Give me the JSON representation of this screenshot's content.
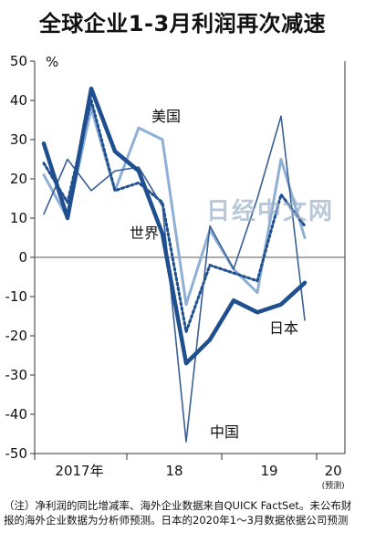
{
  "title": "全球企业1-3月利润再次减速",
  "watermark": "日经中文网",
  "note": "（注）净利润的同比增减率、海外企业数据来自QUICK FactSet。未公布财报的海外企业数据为分析师预测。日本的2020年1～3月数据依据公司预测",
  "chart_data": {
    "type": "line",
    "unit_label": "%",
    "ylim": [
      -50,
      50
    ],
    "yticks": [
      50,
      40,
      30,
      20,
      10,
      0,
      -10,
      -20,
      -30,
      -40,
      -50
    ],
    "x_labels": [
      "2017年",
      "18",
      "19",
      "20"
    ],
    "x_sublabel": "(预测)",
    "x_quarters": [
      "2017Q1",
      "2017Q2",
      "2017Q3",
      "2017Q4",
      "2018Q1",
      "2018Q2",
      "2018Q3",
      "2018Q4",
      "2019Q1",
      "2019Q2",
      "2019Q3",
      "2019Q4",
      "2020Q1"
    ],
    "grid": false,
    "zero_line": true,
    "series": [
      {
        "name": "美国",
        "color": "#8eafd6",
        "style": "solid",
        "width": 3,
        "values": [
          21,
          10,
          38,
          17,
          33,
          30,
          -12,
          7,
          -3,
          -9,
          25,
          5,
          null
        ]
      },
      {
        "name": "世界",
        "color": "#1f4f8f",
        "style": "dotted",
        "width": 3,
        "values": [
          24,
          14,
          40,
          17,
          19,
          14,
          -19,
          -2,
          -4,
          -6,
          16,
          8,
          null
        ]
      },
      {
        "name": "中国",
        "color": "#3a5f95",
        "style": "solid",
        "width": 1.6,
        "values": [
          11,
          25,
          17,
          22,
          23,
          13,
          -47,
          8,
          -3,
          15,
          36,
          -16,
          null
        ]
      },
      {
        "name": "日本",
        "color": "#1f4f8f",
        "style": "solid",
        "width": 4.5,
        "values": [
          29,
          10,
          43,
          27,
          22,
          6,
          -27,
          -21,
          -11,
          -14,
          -12,
          -6.5,
          null
        ]
      }
    ]
  }
}
